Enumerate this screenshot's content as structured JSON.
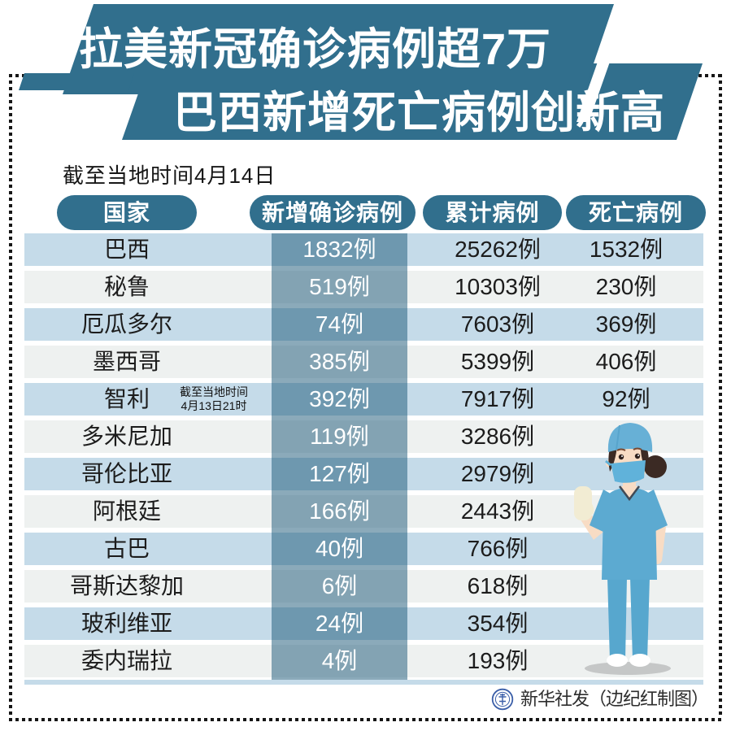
{
  "title": {
    "line1": "拉美新冠确诊病例超7万",
    "line2": "巴西新增死亡病例创新高"
  },
  "subtitle": "截至当地时间4月14日",
  "table": {
    "headers": [
      "国家",
      "新增确诊病例",
      "累计病例",
      "死亡病例"
    ],
    "rows": [
      {
        "country": "巴西",
        "new_cases": "1832例",
        "total": "25262例",
        "deaths": "1532例"
      },
      {
        "country": "秘鲁",
        "new_cases": "519例",
        "total": "10303例",
        "deaths": "230例"
      },
      {
        "country": "厄瓜多尔",
        "new_cases": "74例",
        "total": "7603例",
        "deaths": "369例"
      },
      {
        "country": "墨西哥",
        "new_cases": "385例",
        "total": "5399例",
        "deaths": "406例"
      },
      {
        "country": "智利",
        "note_line1": "截至当地时间",
        "note_line2": "4月13日21时",
        "new_cases": "392例",
        "total": "7917例",
        "deaths": "92例"
      },
      {
        "country": "多米尼加",
        "new_cases": "119例",
        "total": "3286例",
        "deaths": ""
      },
      {
        "country": "哥伦比亚",
        "new_cases": "127例",
        "total": "2979例",
        "deaths": ""
      },
      {
        "country": "阿根廷",
        "new_cases": "166例",
        "total": "2443例",
        "deaths": ""
      },
      {
        "country": "古巴",
        "new_cases": "40例",
        "total": "766例",
        "deaths": ""
      },
      {
        "country": "哥斯达黎加",
        "new_cases": "6例",
        "total": "618例",
        "deaths": ""
      },
      {
        "country": "玻利维亚",
        "new_cases": "24例",
        "total": "354例",
        "deaths": ""
      },
      {
        "country": "委内瑞拉",
        "new_cases": "4例",
        "total": "193例",
        "deaths": ""
      }
    ]
  },
  "footer": {
    "credit": "新华社发（边纪红制图）",
    "logo": "xinhua-emblem"
  },
  "colors": {
    "banner_teal": "#316f8d",
    "row_blue": "#c5dbe9",
    "row_gray": "#eef1f0",
    "band_overlay": "rgba(23,85,118,0.5)",
    "text_dark": "#1c1c1c",
    "band_text": "#ffffff",
    "logo_blue": "#3a5ea8",
    "scrub_blue": "#5caad1",
    "skin": "#f8dcc4",
    "hair_brown": "#3b2a24",
    "glove_cream": "#f2ecd3",
    "shadow_gray": "#c5c7c7"
  },
  "chart_data": {
    "type": "table",
    "title": "拉美新冠确诊病例超7万 巴西新增死亡病例创新高",
    "as_of": "截至当地时间4月14日",
    "columns": [
      "国家",
      "新增确诊病例",
      "累计病例",
      "死亡病例"
    ],
    "rows": [
      [
        "巴西",
        1832,
        25262,
        1532
      ],
      [
        "秘鲁",
        519,
        10303,
        230
      ],
      [
        "厄瓜多尔",
        74,
        7603,
        369
      ],
      [
        "墨西哥",
        385,
        5399,
        406
      ],
      [
        "智利",
        392,
        7917,
        92
      ],
      [
        "多米尼加",
        119,
        3286,
        null
      ],
      [
        "哥伦比亚",
        127,
        2979,
        null
      ],
      [
        "阿根廷",
        166,
        2443,
        null
      ],
      [
        "古巴",
        40,
        766,
        null
      ],
      [
        "哥斯达黎加",
        6,
        618,
        null
      ],
      [
        "玻利维亚",
        24,
        354,
        null
      ],
      [
        "委内瑞拉",
        4,
        193,
        null
      ]
    ],
    "unit": "例",
    "note": "智利数据截至当地时间4月13日21时",
    "source": "新华社发（边纪红制图）"
  }
}
